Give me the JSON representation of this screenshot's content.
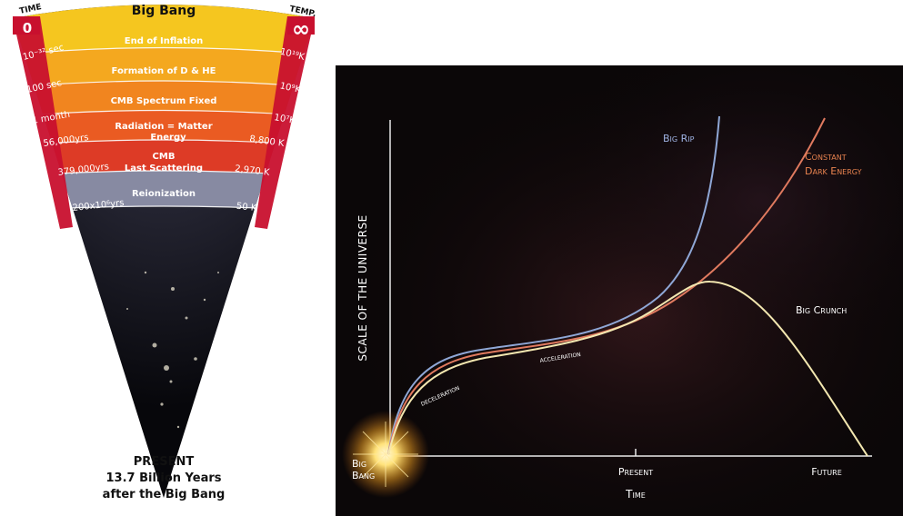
{
  "left_diagram": {
    "title": "Big Bang",
    "time_header": "TIME",
    "temp_header": "TEMP.",
    "time_start": "0",
    "temp_start": "∞",
    "eras": [
      {
        "time": "10⁻³² sec",
        "label": "End of Inflation",
        "temp": "10¹⁹K"
      },
      {
        "time": "100 sec",
        "label": "Formation of D & HE",
        "temp": "10⁹K"
      },
      {
        "time": "1 month",
        "label": "CMB Spectrum Fixed",
        "temp": "10⁷K"
      },
      {
        "time": "56,000yrs",
        "label": "Radiation = Matter",
        "label2": "Energy",
        "temp": "8,800 K"
      },
      {
        "time": "379,000yrs",
        "label": "CMB",
        "label2": "Last Scattering",
        "temp": "2,970 K"
      },
      {
        "time": "200x10⁶yrs",
        "label": "Reionization",
        "temp": "50 K"
      }
    ],
    "present_line1": "PRESENT",
    "present_line2": "13.7 Billion Years",
    "present_line3": "after the Big Bang",
    "colors": {
      "band_top": "#f4c020",
      "band_mid": "#f08a1e",
      "band_low": "#e23a1e",
      "rail_red": "#c8102e",
      "rail_yellow": "#f3b221",
      "reion": "#8a8ea6"
    }
  },
  "right_diagram": {
    "labels": {
      "big_rip": "Big Rip",
      "constant_dark_energy_1": "Constant",
      "constant_dark_energy_2": "Dark Energy",
      "big_crunch": "Big Crunch",
      "deceleration": "deceleration",
      "acceleration": "acceleration",
      "big_bang_1": "Big",
      "big_bang_2": "Bang",
      "present": "Present",
      "future": "Future",
      "x_axis": "Time",
      "y_axis": "SCALE OF THE UNIVERSE"
    },
    "colors": {
      "background": "#0b0708",
      "big_rip": "#8fa7d6",
      "constant_dark_energy": "#e07a5f",
      "big_crunch": "#f3e7b0",
      "label_blue": "#9fb3e3",
      "label_orange": "#e8834f",
      "label_white": "#ffffff",
      "axis": "#e9e9e9"
    }
  }
}
